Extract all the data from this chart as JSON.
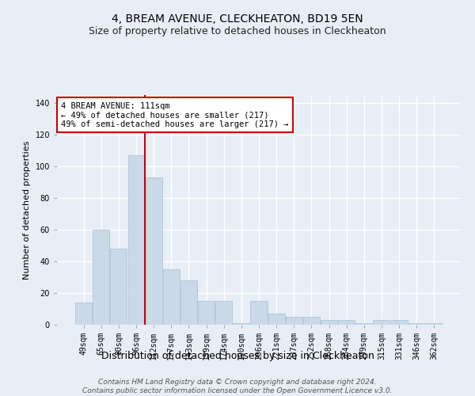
{
  "title1": "4, BREAM AVENUE, CLECKHEATON, BD19 5EN",
  "title2": "Size of property relative to detached houses in Cleckheaton",
  "xlabel": "Distribution of detached houses by size in Cleckheaton",
  "ylabel": "Number of detached properties",
  "categories": [
    "49sqm",
    "65sqm",
    "80sqm",
    "96sqm",
    "112sqm",
    "127sqm",
    "143sqm",
    "159sqm",
    "174sqm",
    "190sqm",
    "206sqm",
    "221sqm",
    "237sqm",
    "252sqm",
    "268sqm",
    "284sqm",
    "299sqm",
    "315sqm",
    "331sqm",
    "346sqm",
    "362sqm"
  ],
  "values": [
    14,
    60,
    48,
    107,
    93,
    35,
    28,
    15,
    15,
    1,
    15,
    7,
    5,
    5,
    3,
    3,
    1,
    3,
    3,
    1,
    1
  ],
  "bar_color": "#c9d9e8",
  "bar_edge_color": "#a8c0d4",
  "vline_position": 3.5,
  "vline_color": "#cc0000",
  "ylim": [
    0,
    145
  ],
  "yticks": [
    0,
    20,
    40,
    60,
    80,
    100,
    120,
    140
  ],
  "annotation_line1": "4 BREAM AVENUE: 111sqm",
  "annotation_line2": "← 49% of detached houses are smaller (217)",
  "annotation_line3": "49% of semi-detached houses are larger (217) →",
  "annotation_box_color": "#ffffff",
  "annotation_box_edge": "#cc0000",
  "footer1": "Contains HM Land Registry data © Crown copyright and database right 2024.",
  "footer2": "Contains public sector information licensed under the Open Government Licence v3.0.",
  "background_color": "#e8eef5",
  "plot_bg_color": "#e8eef5",
  "grid_color": "#ffffff",
  "title1_fontsize": 10,
  "title2_fontsize": 9,
  "xlabel_fontsize": 9,
  "ylabel_fontsize": 8,
  "tick_fontsize": 7,
  "annotation_fontsize": 7.5,
  "footer_fontsize": 6.5
}
